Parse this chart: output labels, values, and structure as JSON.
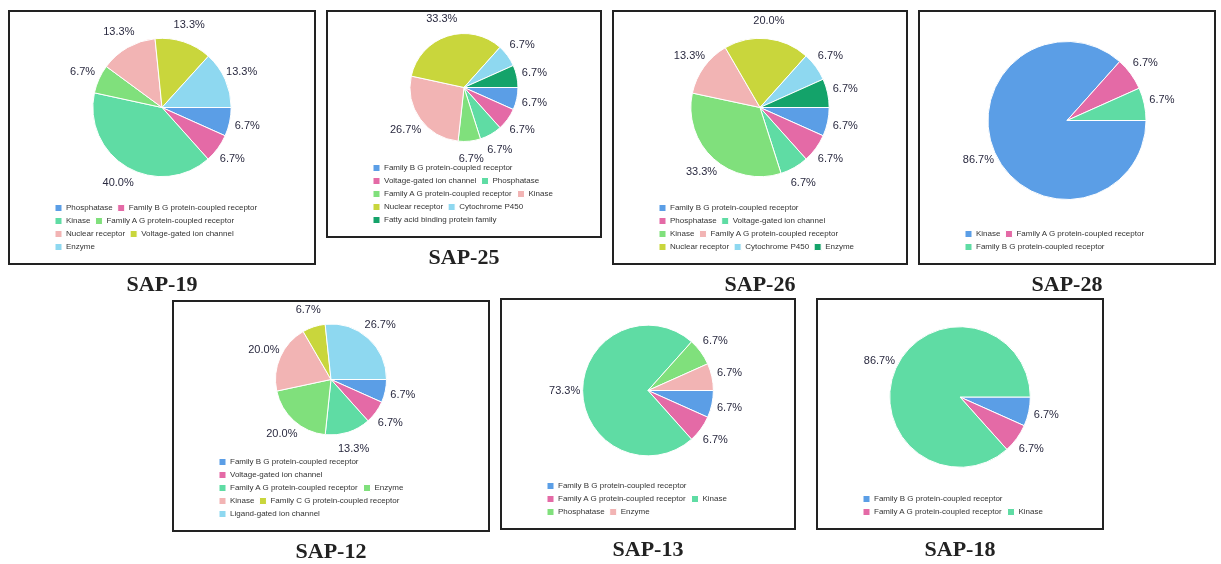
{
  "chart_data": [
    {
      "type": "pie",
      "title": "SAP-19",
      "legend": "bottom",
      "categories": [
        "Phosphatase",
        "Family B G protein-coupled receptor",
        "Kinase",
        "Family A G protein-coupled receptor",
        "Nuclear receptor",
        "Voltage-gated ion channel",
        "Enzyme"
      ],
      "values": [
        6.7,
        6.7,
        40.0,
        6.7,
        13.3,
        13.3,
        13.3
      ],
      "value_labels": [
        "6.7%",
        "6.7%",
        "40.0%",
        "6.7%",
        "13.3%",
        "13.3%",
        "13.3%"
      ],
      "colors": [
        "#5b9ee6",
        "#e46aa6",
        "#5fdca4",
        "#80e07c",
        "#f2b4b4",
        "#c9d63c",
        "#8ed8f0"
      ]
    },
    {
      "type": "pie",
      "title": "SAP-25",
      "legend": "bottom",
      "categories": [
        "Family B G protein-coupled receptor",
        "Voltage-gated ion channel",
        "Phosphatase",
        "Family A G protein-coupled receptor",
        "Kinase",
        "Nuclear receptor",
        "Cytochrome P450",
        "Fatty acid binding protein family"
      ],
      "values": [
        6.7,
        6.7,
        6.7,
        6.7,
        26.7,
        33.3,
        6.7,
        6.7
      ],
      "value_labels": [
        "6.7%",
        "6.7%",
        "6.7%",
        "6.7%",
        "26.7%",
        "33.3%",
        "6.7%",
        "6.7%"
      ],
      "colors": [
        "#5b9ee6",
        "#e46aa6",
        "#5fdca4",
        "#80e07c",
        "#f2b4b4",
        "#c9d63c",
        "#8ed8f0",
        "#14a36a"
      ]
    },
    {
      "type": "pie",
      "title": "SAP-26",
      "legend": "bottom",
      "categories": [
        "Family B G protein-coupled receptor",
        "Phosphatase",
        "Voltage-gated ion channel",
        "Kinase",
        "Family A G protein-coupled receptor",
        "Nuclear receptor",
        "Cytochrome P450",
        "Enzyme"
      ],
      "values": [
        6.7,
        6.7,
        6.7,
        33.3,
        13.3,
        20.0,
        6.7,
        6.7
      ],
      "value_labels": [
        "6.7%",
        "6.7%",
        "6.7%",
        "33.3%",
        "13.3%",
        "20.0%",
        "6.7%",
        "6.7%"
      ],
      "colors": [
        "#5b9ee6",
        "#e46aa6",
        "#5fdca4",
        "#80e07c",
        "#f2b4b4",
        "#c9d63c",
        "#8ed8f0",
        "#14a36a"
      ]
    },
    {
      "type": "pie",
      "title": "SAP-28",
      "legend": "bottom",
      "categories": [
        "Kinase",
        "Family A G protein-coupled receptor",
        "Family B G protein-coupled receptor"
      ],
      "values": [
        86.7,
        6.7,
        6.7
      ],
      "value_labels": [
        "86.7%",
        "6.7%",
        "6.7%"
      ],
      "colors": [
        "#5b9ee6",
        "#e46aa6",
        "#5fdca4"
      ]
    },
    {
      "type": "pie",
      "title": "SAP-12",
      "legend": "bottom",
      "categories": [
        "Family B G protein-coupled receptor",
        "Voltage-gated ion channel",
        "Family A G protein-coupled receptor",
        "Enzyme",
        "Kinase",
        "Family C G protein-coupled receptor",
        "Ligand-gated ion channel"
      ],
      "values": [
        6.7,
        6.7,
        13.3,
        20.0,
        20.0,
        6.7,
        26.7
      ],
      "value_labels": [
        "6.7%",
        "6.7%",
        "13.3%",
        "20.0%",
        "20.0%",
        "6.7%",
        "26.7%"
      ],
      "colors": [
        "#5b9ee6",
        "#e46aa6",
        "#5fdca4",
        "#80e07c",
        "#f2b4b4",
        "#c9d63c",
        "#8ed8f0"
      ]
    },
    {
      "type": "pie",
      "title": "SAP-13",
      "legend": "bottom",
      "categories": [
        "Family B G protein-coupled receptor",
        "Family A G protein-coupled receptor",
        "Kinase",
        "Phosphatase",
        "Enzyme"
      ],
      "values": [
        6.7,
        6.7,
        73.3,
        6.7,
        6.7
      ],
      "value_labels": [
        "6.7%",
        "6.7%",
        "73.3%",
        "6.7%",
        "6.7%"
      ],
      "colors": [
        "#5b9ee6",
        "#e46aa6",
        "#5fdca4",
        "#80e07c",
        "#f2b4b4"
      ]
    },
    {
      "type": "pie",
      "title": "SAP-18",
      "legend": "bottom",
      "categories": [
        "Family B G protein-coupled receptor",
        "Family A G protein-coupled receptor",
        "Kinase"
      ],
      "values": [
        6.7,
        6.7,
        86.7
      ],
      "value_labels": [
        "6.7%",
        "6.7%",
        "86.7%"
      ],
      "colors": [
        "#5b9ee6",
        "#e46aa6",
        "#5fdca4"
      ]
    }
  ]
}
